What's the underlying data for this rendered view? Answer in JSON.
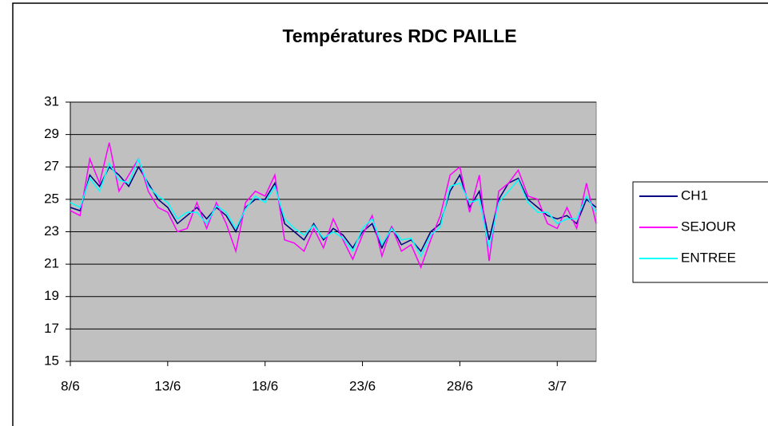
{
  "chart_data": {
    "type": "line",
    "title": "Températures RDC PAILLE",
    "categories": [
      "8/6",
      null,
      null,
      null,
      null,
      null,
      null,
      null,
      null,
      null,
      "13/6",
      null,
      null,
      null,
      null,
      null,
      null,
      null,
      null,
      null,
      "18/6",
      null,
      null,
      null,
      null,
      null,
      null,
      null,
      null,
      null,
      "23/6",
      null,
      null,
      null,
      null,
      null,
      null,
      null,
      null,
      null,
      "28/6",
      null,
      null,
      null,
      null,
      null,
      null,
      null,
      null,
      null,
      "3/7",
      null,
      null,
      null,
      null
    ],
    "series": [
      {
        "name": "CH1",
        "color": "#000080",
        "values": [
          24.5,
          24.3,
          26.5,
          25.8,
          27,
          26.5,
          25.8,
          27,
          26,
          25,
          24.5,
          23.5,
          24,
          24.5,
          23.8,
          24.5,
          24,
          23,
          24.5,
          25,
          25,
          26,
          23.5,
          23,
          22.5,
          23.5,
          22.5,
          23.2,
          22.8,
          22,
          23,
          23.5,
          22,
          23.3,
          22.2,
          22.5,
          21.8,
          23,
          23.5,
          25.5,
          26.5,
          24.5,
          25.5,
          22.5,
          25,
          26,
          26.3,
          25,
          24.5,
          24,
          23.8,
          24,
          23.5,
          25,
          24.5
        ]
      },
      {
        "name": "SEJOUR",
        "color": "#ff00ff",
        "values": [
          24.3,
          24,
          27.5,
          26,
          28.5,
          25.5,
          26.5,
          27.5,
          25.5,
          24.5,
          24.2,
          23,
          23.2,
          24.8,
          23.2,
          24.8,
          23.5,
          21.8,
          24.8,
          25.5,
          25.2,
          26.5,
          22.5,
          22.3,
          21.8,
          23.2,
          22,
          23.8,
          22.5,
          21.3,
          22.8,
          24,
          21.5,
          23.3,
          21.8,
          22.2,
          20.8,
          22.5,
          24,
          26.5,
          27,
          24.2,
          26.5,
          21.2,
          25.5,
          26,
          26.8,
          25.2,
          25,
          23.5,
          23.2,
          24.5,
          23.2,
          26,
          23.5
        ]
      },
      {
        "name": "ENTREE",
        "color": "#00ffff",
        "values": [
          24.8,
          24.5,
          26.3,
          25.5,
          27.2,
          26.2,
          26,
          27.5,
          25.8,
          25.2,
          24.8,
          23.8,
          24.2,
          24.2,
          23.5,
          24.6,
          24.2,
          23.2,
          24.4,
          25.2,
          24.8,
          25.8,
          23.8,
          23.2,
          22.8,
          23.4,
          22.6,
          23,
          22.6,
          21.8,
          23.2,
          23.8,
          22.2,
          23.2,
          22.5,
          22.6,
          21.5,
          22.8,
          23.3,
          25.8,
          26,
          24.8,
          25,
          22,
          24.8,
          25.5,
          26.2,
          24.8,
          24.2,
          24.2,
          23.5,
          23.8,
          23.8,
          25.2,
          24.2
        ]
      }
    ],
    "ylim": [
      15,
      31
    ],
    "yticks": [
      15,
      17,
      19,
      21,
      23,
      25,
      27,
      29,
      31
    ],
    "grid": true,
    "legend": "right"
  }
}
